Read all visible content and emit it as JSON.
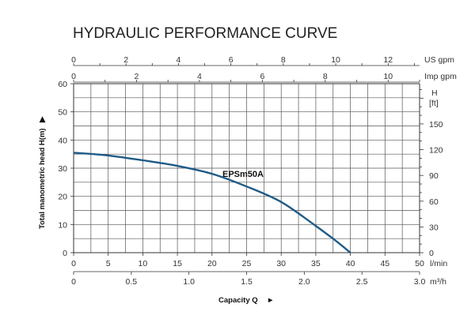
{
  "chart_data": {
    "type": "line",
    "title": "HYDRAULIC PERFORMANCE CURVE",
    "xlabel": "Capacity Q",
    "ylabel": "Total manometric head H(m)",
    "xlim": [
      0,
      50
    ],
    "ylim": [
      0,
      60
    ],
    "x_axis_unit": "l/min",
    "y_axis_unit": "",
    "x_ticks": [
      "0",
      "5",
      "10",
      "15",
      "20",
      "25",
      "30",
      "35",
      "40",
      "45",
      "50"
    ],
    "y_ticks": [
      "0",
      "10",
      "20",
      "30",
      "40",
      "50",
      "60"
    ],
    "secondary_axes": {
      "bottom_m3h": {
        "unit": "m³/h",
        "ticks": [
          "0",
          "0.5",
          "1.0",
          "1.5",
          "2.0",
          "2.5",
          "3.0"
        ],
        "range": [
          0,
          3.0
        ]
      },
      "top_us_gpm": {
        "unit": "US gpm",
        "ticks": [
          "0",
          "2",
          "4",
          "6",
          "8",
          "10",
          "12"
        ],
        "range": [
          0,
          13.2
        ]
      },
      "top_imp_gpm": {
        "unit": "Imp gpm",
        "ticks": [
          "0",
          "2",
          "4",
          "6",
          "8",
          "10"
        ],
        "range": [
          0,
          11
        ]
      },
      "right_ft": {
        "unit_line1": "H",
        "unit_line2": "[ft]",
        "ticks": [
          "0",
          "30",
          "60",
          "90",
          "120",
          "150"
        ],
        "range": [
          0,
          196.85
        ]
      }
    },
    "grid": true,
    "series": [
      {
        "name": "EPSm50A",
        "x": [
          0,
          5,
          10,
          15,
          20,
          25,
          30,
          35,
          38,
          40
        ],
        "y": [
          35.5,
          34.5,
          32.8,
          30.8,
          28,
          23.5,
          18,
          9.5,
          4,
          0
        ]
      }
    ]
  }
}
